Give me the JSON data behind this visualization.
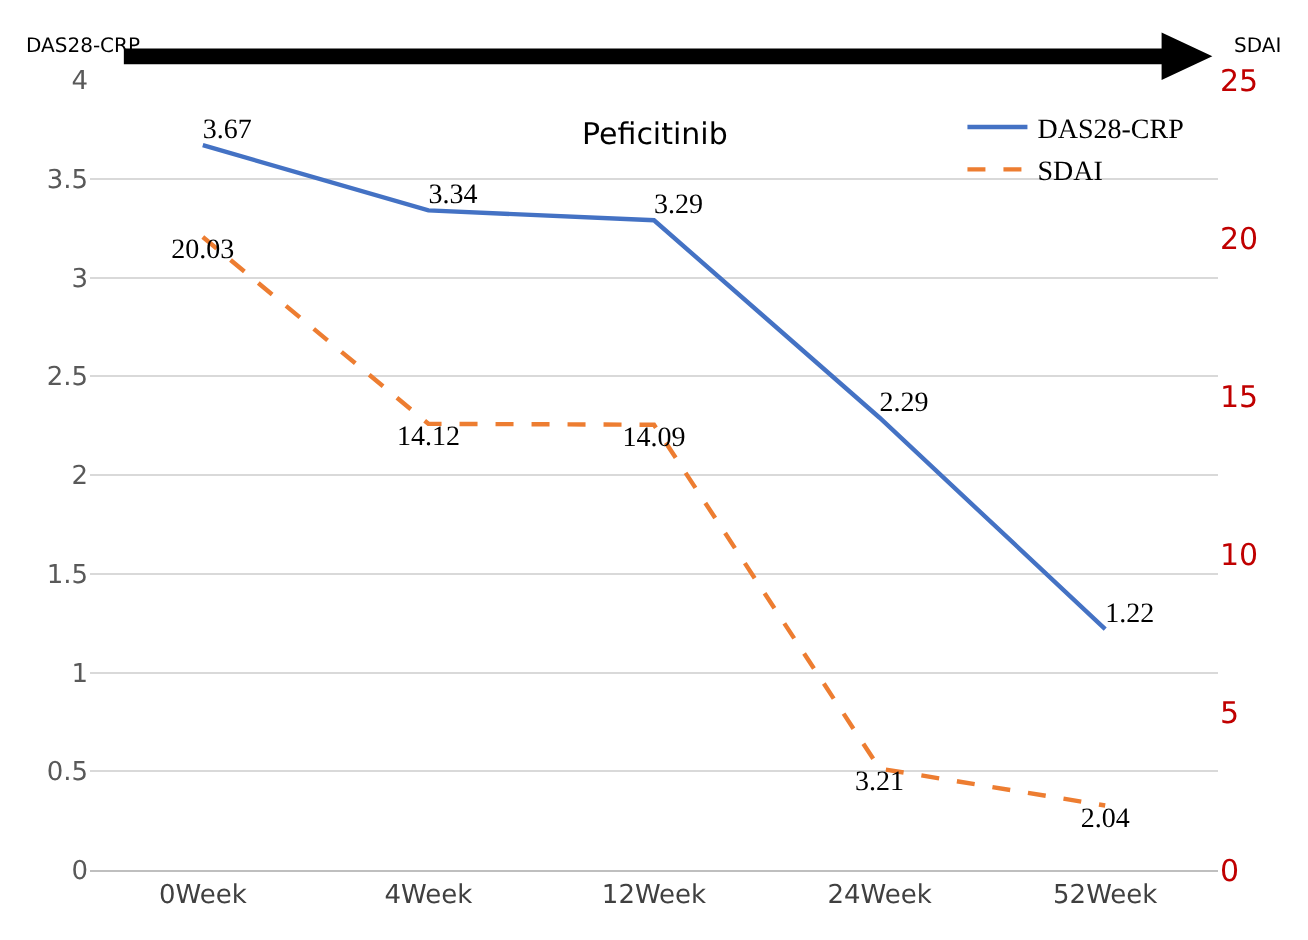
{
  "chart_data": {
    "type": "line",
    "categories": [
      "0Week",
      "4Week",
      "12Week",
      "24Week",
      "52Week"
    ],
    "series": [
      {
        "name": "DAS28-CRP",
        "color": "#4472c4",
        "values": [
          3.67,
          3.34,
          3.29,
          2.29,
          1.22
        ],
        "line_style": "solid"
      },
      {
        "name": "SDAI",
        "color": "#ed7d31",
        "values": [
          20.03,
          14.12,
          14.09,
          3.21,
          2.04
        ],
        "axis": "y2",
        "line_style": "dashed"
      }
    ],
    "ylabel": "DAS28-CRP",
    "y2label": "SDAI",
    "ylim": [
      0,
      4
    ],
    "yticks": [
      0,
      0.5,
      1,
      1.5,
      2,
      2.5,
      3,
      3.5,
      4
    ],
    "y2lim": [
      0,
      25
    ],
    "y2ticks": [
      0,
      5,
      10,
      15,
      20,
      25
    ],
    "annotations": [
      "Peficitinib"
    ],
    "data_labels": true,
    "grid": "y",
    "legend": "top right",
    "marker": "none"
  }
}
